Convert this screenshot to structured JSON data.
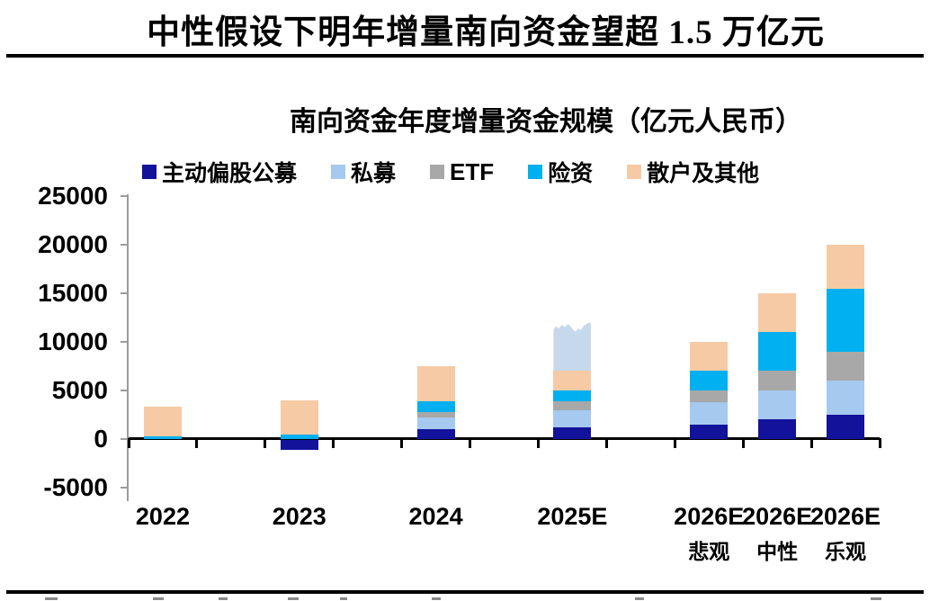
{
  "page": {
    "title": "中性假设下明年增量南向资金望超 1.5 万亿元"
  },
  "chart_data": {
    "type": "bar",
    "stacked": true,
    "title": "南向资金年度增量资金规模（亿元人民币）",
    "unit": "亿元人民币",
    "grid": false,
    "legend_position": "top",
    "ylim": [
      -5000,
      25000
    ],
    "yticks": [
      25000,
      20000,
      15000,
      10000,
      5000,
      0,
      -5000
    ],
    "categories": [
      "2022",
      "2023",
      "2024",
      "2025E",
      "2026E悲观",
      "2026E中性",
      "2026E乐观"
    ],
    "category_slugs": [
      "2022",
      "2023",
      "2024",
      "2025e",
      "2026e-pessimistic",
      "2026e-neutral",
      "2026e-optimistic"
    ],
    "x_tick_labels_line1": [
      "2022",
      "2023",
      "2024",
      "2025E",
      "2026E",
      "2026E",
      "2026E"
    ],
    "x_tick_labels_line2": [
      "",
      "",
      "",
      "",
      "悲观",
      "中性",
      "乐观"
    ],
    "legend": [
      "主动偏股公募",
      "私募",
      "ETF",
      "险资",
      "散户及其他"
    ],
    "series": [
      {
        "name": "主动偏股公募",
        "slug": "active-equity-mutual-fund",
        "color": "#12129b",
        "in_legend": true,
        "values": [
          0,
          -1000,
          1000,
          1200,
          1500,
          2000,
          2500
        ]
      },
      {
        "name": "私募",
        "slug": "private-fund",
        "color": "#a5c9ef",
        "in_legend": true,
        "values": [
          0,
          0,
          1200,
          1800,
          2300,
          3000,
          3500
        ]
      },
      {
        "name": "ETF",
        "slug": "etf",
        "color": "#a8a8a8",
        "in_legend": true,
        "values": [
          0,
          0,
          600,
          900,
          1200,
          2000,
          3000
        ]
      },
      {
        "name": "险资",
        "slug": "insurance",
        "color": "#00b0f0",
        "in_legend": true,
        "values": [
          300,
          500,
          1100,
          1100,
          2000,
          4000,
          6500
        ]
      },
      {
        "name": "散户及其他",
        "slug": "retail-and-others",
        "color": "#f6caa4",
        "in_legend": true,
        "values": [
          3000,
          3500,
          3600,
          2000,
          3000,
          4000,
          4500
        ]
      },
      {
        "name": "未标注浅蓝段(2025E顶部,手绘状边缘)",
        "slug": "unlabeled-pale-blue",
        "color": "#c5d8ec",
        "in_legend": false,
        "jagged_top": true,
        "values": [
          0,
          0,
          0,
          5000,
          0,
          0,
          0
        ]
      }
    ],
    "bar_totals_positive": [
      3300,
      4000,
      7500,
      12000,
      10000,
      15000,
      20000
    ],
    "colors": {
      "axis_gray": "#9b9b9b",
      "axis_black": "#000000"
    }
  }
}
